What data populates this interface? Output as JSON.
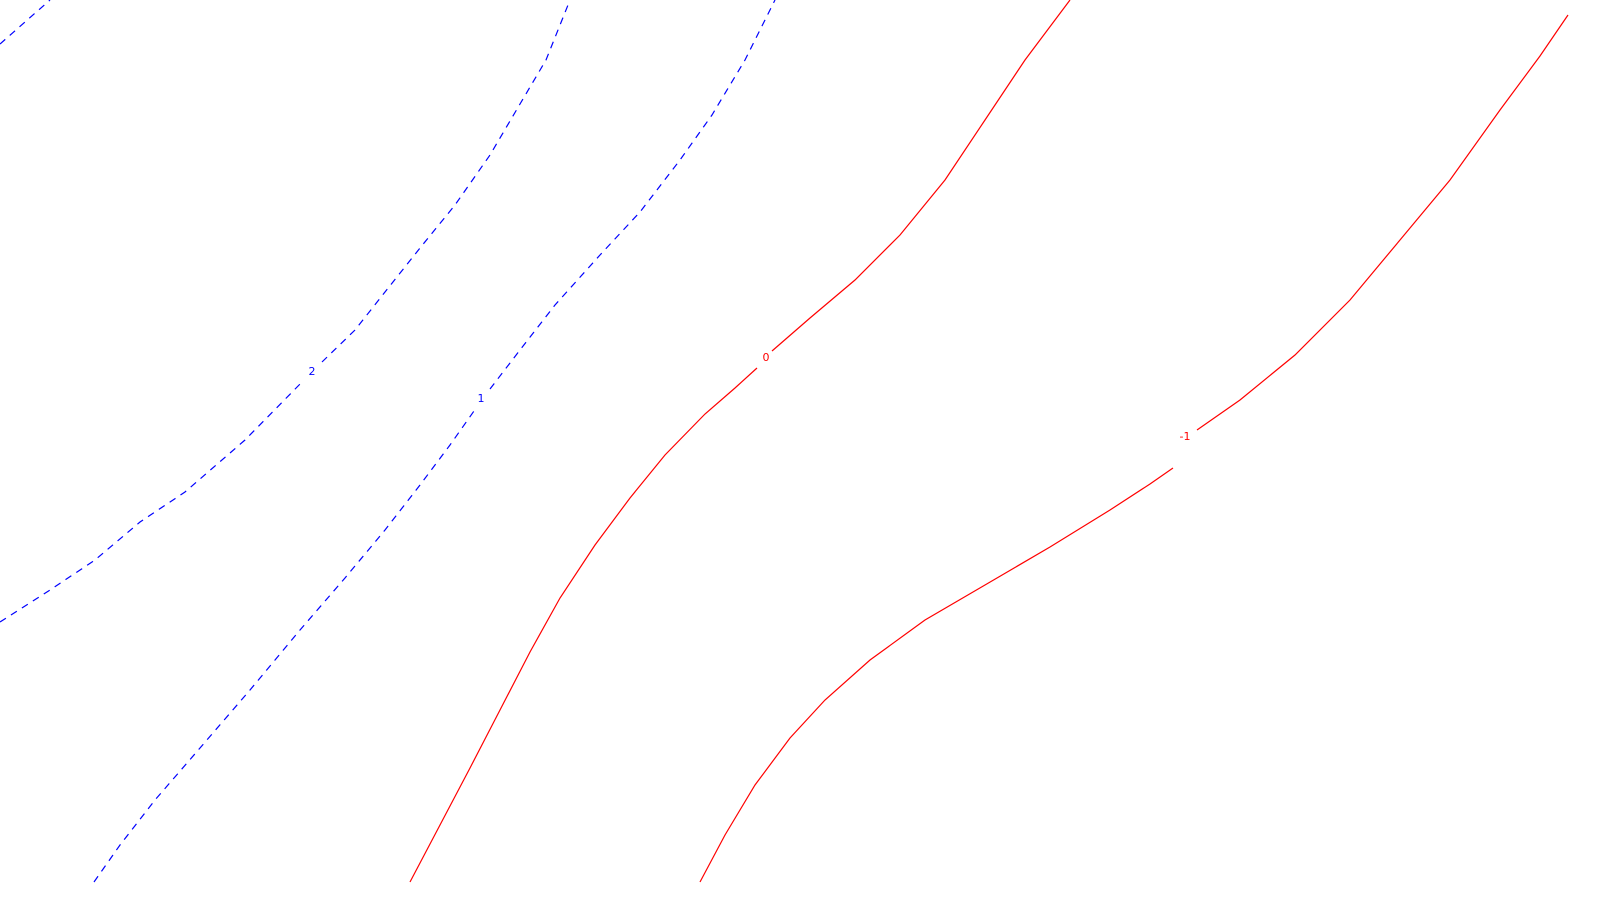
{
  "chart_data": {
    "type": "contour",
    "title": "",
    "xlabel": "",
    "ylabel": "",
    "grid": false,
    "legend": "none",
    "levels": [
      {
        "value": 2,
        "label": "2",
        "color": "#0000ff",
        "style": "dashed"
      },
      {
        "value": 1,
        "label": "1",
        "color": "#0000ff",
        "style": "dashed"
      },
      {
        "value": 0,
        "label": "0",
        "color": "#ff0000",
        "style": "solid"
      },
      {
        "value": -1,
        "label": "-1",
        "color": "#ff0000",
        "style": "solid"
      }
    ]
  }
}
